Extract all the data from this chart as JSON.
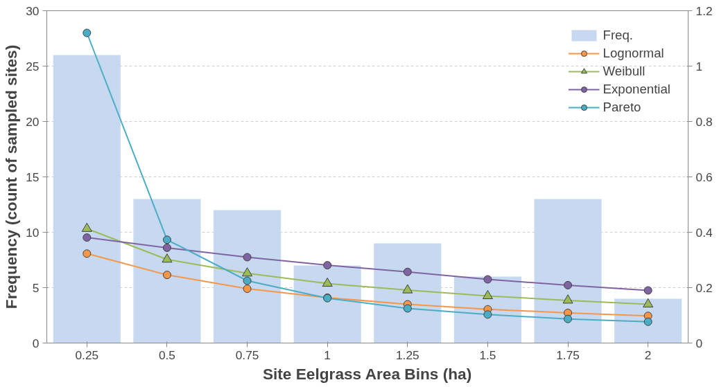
{
  "chart_data": {
    "type": "bar",
    "xlabel": "Site Eelgrass Area Bins (ha)",
    "ylabel": "Frequency (count of sampled sites)",
    "categories": [
      "0.25",
      "0.5",
      "0.75",
      "1",
      "1.25",
      "1.5",
      "1.75",
      "2"
    ],
    "series": [
      {
        "name": "Freq.",
        "color": "#c6d9f0",
        "values": [
          26,
          13,
          12,
          7,
          9,
          6,
          13,
          4
        ]
      },
      {
        "name": "Lognormal",
        "type": "line",
        "axis": "y2",
        "marker": "circle",
        "color": "#f79646",
        "values": [
          0.323,
          0.246,
          0.196,
          0.164,
          0.14,
          0.122,
          0.109,
          0.098
        ]
      },
      {
        "name": "Weibull",
        "type": "line",
        "axis": "y2",
        "marker": "triangle",
        "color": "#9bbb59",
        "values": [
          0.413,
          0.302,
          0.252,
          0.215,
          0.191,
          0.17,
          0.154,
          0.14
        ]
      },
      {
        "name": "Exponential",
        "type": "line",
        "axis": "y2",
        "marker": "circle",
        "color": "#8064a2",
        "values": [
          0.381,
          0.344,
          0.31,
          0.281,
          0.257,
          0.23,
          0.209,
          0.19
        ]
      },
      {
        "name": "Pareto",
        "type": "line",
        "axis": "y2",
        "marker": "circle",
        "color": "#4bacc6",
        "values": [
          1.12,
          0.373,
          0.225,
          0.162,
          0.125,
          0.103,
          0.087,
          0.077
        ]
      }
    ],
    "ylim": [
      0,
      30
    ],
    "yticks": [
      0,
      5,
      10,
      15,
      20,
      25,
      30
    ],
    "y2lim": [
      0,
      1.2
    ],
    "y2ticks": [
      0,
      {
        "value": 0.2,
        "label": "0.2"
      },
      {
        "value": 0.4,
        "label": "0.4"
      },
      {
        "value": 0.6,
        "label": "0.6"
      },
      {
        "value": 0.8,
        "label": "0.8"
      },
      1,
      {
        "value": 1.2,
        "label": "1.2"
      }
    ],
    "grid": "y",
    "legend": "top right"
  }
}
